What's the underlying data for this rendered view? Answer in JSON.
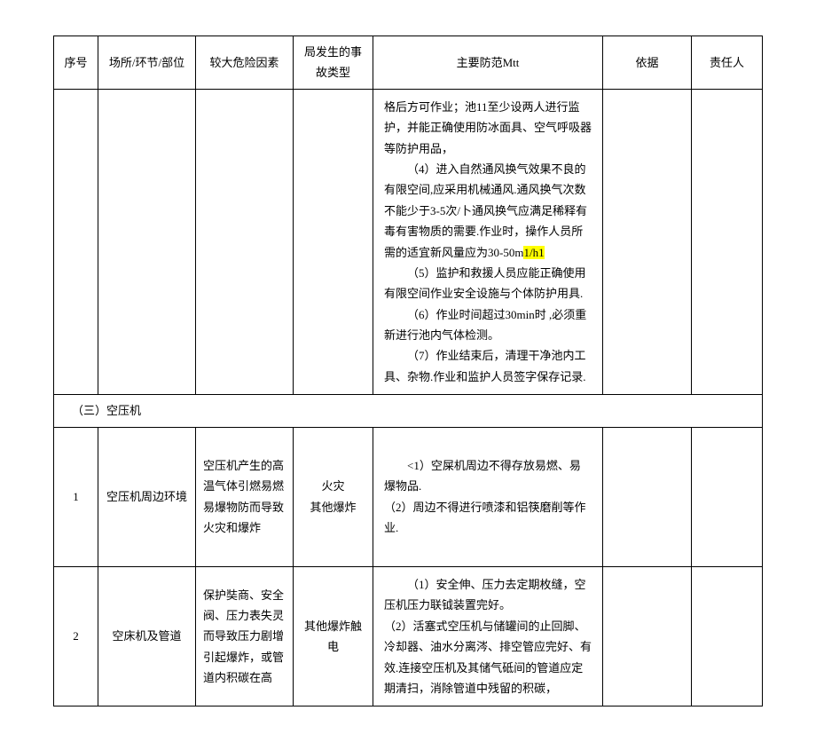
{
  "headers": {
    "seq": "序号",
    "place": "场所/环节/部位",
    "factor": "较大危险因素",
    "type": "局发生的事故类型",
    "measure": "主要防范Mtt",
    "basis": "依据",
    "person": "责任人"
  },
  "row_continuation": {
    "measure_lines": [
      "格后方可作业；池11至少设两人进行监护，并能正确使用防冰面具、空气呼吸器等防护用品，",
      "（4）进入自然通风换气效果不良的有限空间,应采用机械通风.通风换气次数不能少于3-5次/卜通风换气应满足稀释有毒有害物质的需要.作业时，操作人员所需的适宜新风量应为30-50m",
      "（5）监护和救援人员应能正确使用有限空间作业安全设施与个体防护用具.",
      "（6）作业时间超过30min时 ,必须重新进行池内气体检测。",
      "（7）作业结束后，清理干净池内工具、杂物.作业和监护人员签字保存记录."
    ],
    "highlight_unit": "1/h1"
  },
  "section": {
    "title": "（三）空压机"
  },
  "row1": {
    "seq": "1",
    "place": "空压机周边环境",
    "factor": "空压机产生的高温气体引燃易燃易爆物防而导致火灾和爆炸",
    "type": "火灾\n其他爆炸",
    "measure": "<1）空屎机周边不得存放易燃、易爆物品.\n（2）周边不得进行喷漆和铝筷磨削等作业."
  },
  "row2": {
    "seq": "2",
    "place": "空床机及管道",
    "factor": "保护奘商、安全阀、压力表失灵而导致压力剧增引起爆炸，或管道内积碳在高",
    "type": "其他爆炸触电",
    "measure": "（1）安全伸、压力去定期枚缝，空压机压力联钺装置完好。\n（2）活塞式空压机与储罐间的止回脚、冷却器、油水分离涔、排空管应完好、有效.连接空压机及其储气砥间的管道应定期清扫，消除管道中残留的积碳，"
  },
  "styles": {
    "background_color": "#ffffff",
    "border_color": "#000000",
    "text_color": "#000000",
    "highlight_color": "#ffff00",
    "font_family": "SimSun",
    "font_size": 13,
    "line_height": 1.8
  }
}
